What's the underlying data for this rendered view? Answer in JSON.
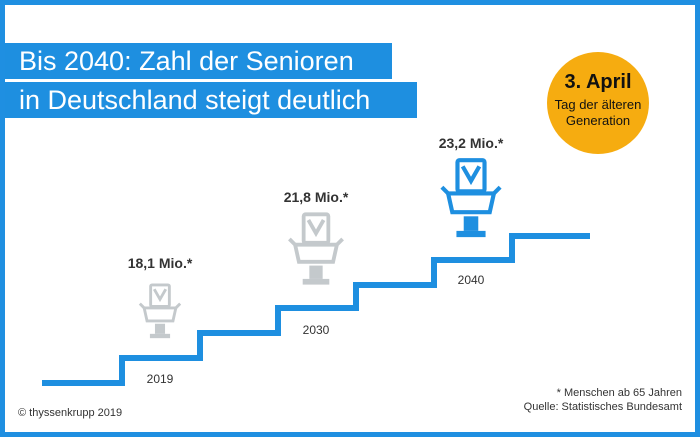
{
  "title_line1": "Bis 2040: Zahl der Senioren",
  "title_line2": "in Deutschland steigt deutlich",
  "badge": {
    "date": "3. April",
    "line1": "Tag der älteren",
    "line2": "Generation"
  },
  "copyright": "© thyssenkrupp 2019",
  "footnote": {
    "line1": "* Menschen ab 65 Jahren",
    "line2": "Quelle: Statistisches Bundesamt"
  },
  "colors": {
    "accent": "#1e8fe0",
    "badge": "#f6ac10",
    "chair_past": "#c4c9cc",
    "chair_current": "#1e8fe0"
  },
  "chart_data": {
    "type": "bar",
    "categories": [
      "2019",
      "2030",
      "2040"
    ],
    "values": [
      18.1,
      21.8,
      23.2
    ],
    "value_labels": [
      "18,1 Mio.*",
      "21,8 Mio.*",
      "23,2 Mio.*"
    ],
    "title": "Bis 2040: Zahl der Senioren in Deutschland steigt deutlich"
  }
}
